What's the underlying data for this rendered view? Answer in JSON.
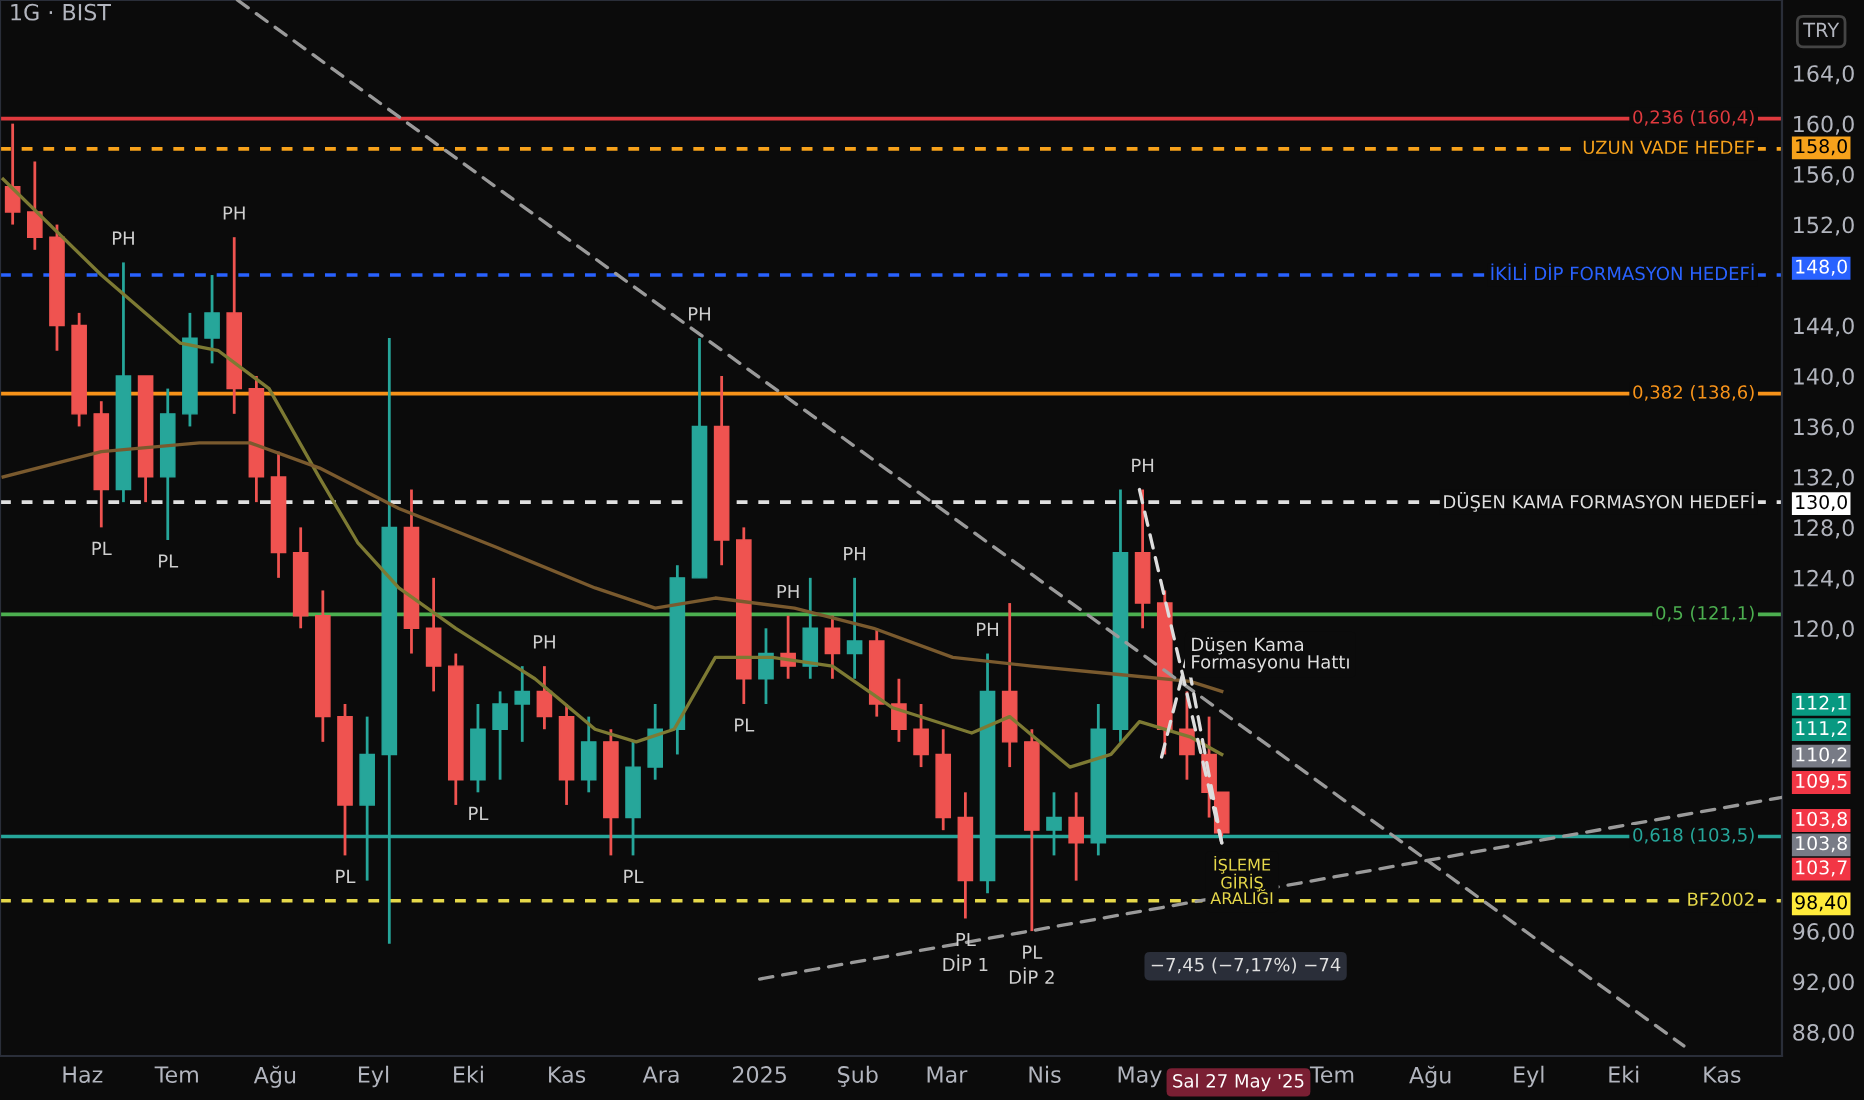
{
  "chart_data": {
    "type": "candlestick",
    "title": "1G · BIST",
    "x": [
      "2024-05-10",
      "2024-05-17",
      "2024-05-24",
      "2024-05-31",
      "2024-06-07",
      "2024-06-14",
      "2024-06-21",
      "2024-06-28",
      "2024-07-05",
      "2024-07-12",
      "2024-07-19",
      "2024-07-26",
      "2024-08-02",
      "2024-08-09",
      "2024-08-16",
      "2024-08-23",
      "2024-08-30",
      "2024-09-06",
      "2024-09-13",
      "2024-09-20",
      "2024-09-27",
      "2024-10-04",
      "2024-10-11",
      "2024-10-18",
      "2024-10-25",
      "2024-11-01",
      "2024-11-08",
      "2024-11-15",
      "2024-11-22",
      "2024-11-29",
      "2024-12-06",
      "2024-12-13",
      "2024-12-20",
      "2024-12-27",
      "2025-01-03",
      "2025-01-10",
      "2025-01-17",
      "2025-01-24",
      "2025-01-31",
      "2025-02-07",
      "2025-02-14",
      "2025-02-21",
      "2025-02-28",
      "2025-03-07",
      "2025-03-14",
      "2025-03-21",
      "2025-03-28",
      "2025-04-04",
      "2025-04-11",
      "2025-04-18",
      "2025-04-25",
      "2025-05-02",
      "2025-05-09",
      "2025-05-16",
      "2025-05-23",
      "2025-05-27"
    ],
    "ohlc": [
      [
        155,
        160,
        152,
        153
      ],
      [
        153,
        157,
        150,
        151
      ],
      [
        151,
        152,
        142,
        144
      ],
      [
        144,
        145,
        136,
        137
      ],
      [
        137,
        138,
        128,
        131
      ],
      [
        131,
        149,
        130,
        140
      ],
      [
        140,
        140,
        130,
        132
      ],
      [
        132,
        139,
        127,
        137
      ],
      [
        137,
        145,
        136,
        143
      ],
      [
        143,
        148,
        141,
        145
      ],
      [
        145,
        151,
        137,
        139
      ],
      [
        139,
        140,
        130,
        132
      ],
      [
        132,
        134,
        124,
        126
      ],
      [
        126,
        128,
        120,
        121
      ],
      [
        121,
        123,
        111,
        113
      ],
      [
        113,
        114,
        102,
        106
      ],
      [
        106,
        113,
        100,
        110
      ],
      [
        110,
        143,
        95,
        128
      ],
      [
        128,
        131,
        118,
        120
      ],
      [
        120,
        124,
        115,
        117
      ],
      [
        117,
        118,
        106,
        108
      ],
      [
        108,
        114,
        107,
        112
      ],
      [
        112,
        115,
        108,
        114
      ],
      [
        114,
        117,
        111,
        115
      ],
      [
        115,
        117,
        112,
        113
      ],
      [
        113,
        114,
        106,
        108
      ],
      [
        108,
        113,
        107,
        111
      ],
      [
        111,
        112,
        102,
        105
      ],
      [
        105,
        111,
        102,
        109
      ],
      [
        109,
        114,
        108,
        112
      ],
      [
        112,
        125,
        110,
        124
      ],
      [
        124,
        143,
        124,
        136
      ],
      [
        136,
        140,
        125,
        127
      ],
      [
        127,
        128,
        114,
        116
      ],
      [
        116,
        120,
        114,
        118
      ],
      [
        118,
        121,
        116,
        117
      ],
      [
        117,
        124,
        116,
        120
      ],
      [
        120,
        121,
        116,
        118
      ],
      [
        118,
        124,
        116,
        119
      ],
      [
        119,
        120,
        113,
        114
      ],
      [
        114,
        116,
        111,
        112
      ],
      [
        112,
        114,
        109,
        110
      ],
      [
        110,
        112,
        104,
        105
      ],
      [
        105,
        107,
        97,
        100
      ],
      [
        100,
        118,
        99,
        115
      ],
      [
        115,
        122,
        109,
        111
      ],
      [
        111,
        112,
        96,
        104
      ],
      [
        104,
        107,
        102,
        105
      ],
      [
        105,
        107,
        100,
        103
      ],
      [
        103,
        114,
        102,
        112
      ],
      [
        112,
        131,
        111,
        126
      ],
      [
        126,
        131,
        120,
        122
      ],
      [
        122,
        123,
        110,
        112
      ],
      [
        112,
        115,
        108,
        110
      ],
      [
        110,
        113,
        105,
        107
      ],
      [
        107,
        107,
        103.5,
        103.8
      ]
    ],
    "colors": [
      "#ef5350",
      "#ef5350",
      "#ef5350",
      "#ef5350",
      "#ef5350",
      "#26a69a",
      "#ef5350",
      "#26a69a",
      "#26a69a",
      "#26a69a",
      "#ef5350",
      "#ef5350",
      "#ef5350",
      "#ef5350",
      "#ef5350",
      "#ef5350",
      "#26a69a",
      "#26a69a",
      "#ef5350",
      "#ef5350",
      "#ef5350",
      "#26a69a",
      "#26a69a",
      "#26a69a",
      "#ef5350",
      "#ef5350",
      "#26a69a",
      "#ef5350",
      "#26a69a",
      "#26a69a",
      "#26a69a",
      "#26a69a",
      "#ef5350",
      "#ef5350",
      "#26a69a",
      "#ef5350",
      "#26a69a",
      "#ef5350",
      "#26a69a",
      "#ef5350",
      "#ef5350",
      "#ef5350",
      "#ef5350",
      "#ef5350",
      "#26a69a",
      "#ef5350",
      "#ef5350",
      "#26a69a",
      "#ef5350",
      "#26a69a",
      "#26a69a",
      "#ef5350",
      "#ef5350",
      "#ef5350",
      "#ef5350",
      "#ef5350"
    ],
    "series": [
      {
        "type": "line",
        "color": "#7d7a33",
        "x": [
          "2024-05-07",
          "2024-06-07",
          "2024-07-02",
          "2024-07-14",
          "2024-07-30",
          "2024-08-15",
          "2024-08-27",
          "2024-09-09",
          "2024-09-27",
          "2024-10-22",
          "2024-11-10",
          "2024-11-23",
          "2024-12-05",
          "2024-12-18",
          "2025-01-05",
          "2025-01-24",
          "2025-02-12",
          "2025-03-09",
          "2025-03-21",
          "2025-04-09",
          "2025-04-22",
          "2025-05-01",
          "2025-05-17",
          "2025-05-27"
        ],
        "values": [
          155.6,
          148,
          142.6,
          142,
          139,
          131.9,
          126.8,
          123.2,
          120,
          116,
          112,
          111,
          112,
          117.7,
          117.7,
          117,
          113.7,
          111.7,
          113,
          109,
          110,
          112.6,
          111.4,
          110
        ]
      },
      {
        "type": "line",
        "color": "#7a5a2e",
        "x": [
          "2024-05-07",
          "2024-06-07",
          "2024-07-08",
          "2024-07-24",
          "2024-08-15",
          "2024-09-09",
          "2024-10-10",
          "2024-11-10",
          "2024-11-29",
          "2024-12-18",
          "2025-01-12",
          "2025-02-06",
          "2025-03-03",
          "2025-03-28",
          "2025-04-22",
          "2025-05-17",
          "2025-05-27"
        ],
        "values": [
          132,
          134,
          134.7,
          134.7,
          132.7,
          129.5,
          126.4,
          123.2,
          121.6,
          122.4,
          121.6,
          120,
          117.7,
          117,
          116.4,
          115.8,
          115
        ]
      },
      {
        "type": "line",
        "color": "#9a9a9a",
        "line_style": "dashed",
        "x": [
          "2024-07-20",
          "2025-10-20"
        ],
        "values": [
          169.8,
          86.9
        ]
      },
      {
        "type": "line",
        "color": "#9a9a9a",
        "line_style": "dashed",
        "x": [
          "2025-01-01",
          "2025-11-20"
        ],
        "values": [
          92.2,
          106.6
        ]
      },
      {
        "type": "line",
        "color": "#dddddd",
        "line_style": "dashed",
        "x": [
          "2025-05-01",
          "2025-05-27"
        ],
        "values": [
          131,
          103
        ]
      },
      {
        "type": "line",
        "color": "#dddddd",
        "line_style": "dashed",
        "x": [
          "2025-05-08",
          "2025-05-16",
          "2025-05-27"
        ],
        "values": [
          109.8,
          117.7,
          103
        ]
      }
    ],
    "ref_lines": [
      {
        "axis": "y",
        "value": 160.4,
        "label": "0,236 (160,4)",
        "color": "#e03a3e",
        "line_style": "solid"
      },
      {
        "axis": "y",
        "value": 158.0,
        "label": "UZUN VADE HEDEF",
        "color": "#f7a21b",
        "line_style": "dashed"
      },
      {
        "axis": "y",
        "value": 148.0,
        "label": "İKİLİ DİP FORMASYON HEDEFİ",
        "color": "#2962ff",
        "line_style": "dashed"
      },
      {
        "axis": "y",
        "value": 138.6,
        "label": "0,382 (138,6)",
        "color": "#f7931a",
        "line_style": "solid"
      },
      {
        "axis": "y",
        "value": 130.0,
        "label": "DÜŞEN KAMA FORMASYON HEDEFİ",
        "color": "#e0e0e0",
        "line_style": "dashed"
      },
      {
        "axis": "y",
        "value": 121.1,
        "label": "0,5 (121,1)",
        "color": "#4caf50",
        "line_style": "solid"
      },
      {
        "axis": "y",
        "value": 103.5,
        "label": "0,618 (103,5)",
        "color": "#26a69a",
        "line_style": "solid"
      },
      {
        "axis": "y",
        "value": 98.4,
        "label": "BF2002",
        "color": "#e6d84a",
        "line_style": "dashed"
      }
    ],
    "annotations": [
      "TRY",
      "158,0",
      "148,0",
      "130,0",
      "112,1",
      "111,2",
      "110,2",
      "109,5",
      "103,8",
      "103,8",
      "103,7",
      "98,40",
      "Düşen Kama\nFormasyonu Hattı",
      "İŞLEME\nGİRİŞ\nARALIĞI",
      "−7,45 (−7,17%) −74",
      "Sal 27 May '25",
      {
        "text": "PH",
        "x": "2024-06-14",
        "y": 149
      },
      {
        "text": "PH",
        "x": "2024-07-19",
        "y": 151
      },
      {
        "text": "PH",
        "x": "2024-10-25",
        "y": 117
      },
      {
        "text": "PH",
        "x": "2024-12-13",
        "y": 143
      },
      {
        "text": "PH",
        "x": "2025-01-10",
        "y": 121
      },
      {
        "text": "PH",
        "x": "2025-01-31",
        "y": 124
      },
      {
        "text": "PH",
        "x": "2025-03-14",
        "y": 118
      },
      {
        "text": "PH",
        "x": "2025-05-02",
        "y": 131
      },
      {
        "text": "PL",
        "x": "2024-06-07",
        "y": 128
      },
      {
        "text": "PL",
        "x": "2024-06-28",
        "y": 127
      },
      {
        "text": "PL",
        "x": "2024-08-23",
        "y": 102
      },
      {
        "text": "PL",
        "x": "2024-10-04",
        "y": 107
      },
      {
        "text": "PL",
        "x": "2024-11-22",
        "y": 102
      },
      {
        "text": "PL",
        "x": "2024-12-27",
        "y": 114
      },
      {
        "text": "PL",
        "x": "2025-03-07",
        "y": 97
      },
      {
        "text": "PL",
        "x": "2025-03-28",
        "y": 96
      },
      {
        "text": "DİP 1",
        "x": "2025-03-07",
        "y": 97
      },
      {
        "text": "DİP 2",
        "x": "2025-03-28",
        "y": 96
      }
    ],
    "xlim": [
      "2024-05-06",
      "2025-11-20"
    ],
    "xticks": [
      {
        "value": "2024-06-01",
        "label": "Haz"
      },
      {
        "value": "2024-07-01",
        "label": "Tem"
      },
      {
        "value": "2024-08-01",
        "label": "Ağu"
      },
      {
        "value": "2024-09-01",
        "label": "Eyl"
      },
      {
        "value": "2024-10-01",
        "label": "Eki"
      },
      {
        "value": "2024-11-01",
        "label": "Kas"
      },
      {
        "value": "2024-12-01",
        "label": "Ara"
      },
      {
        "value": "2025-01-01",
        "label": "2025"
      },
      {
        "value": "2025-02-01",
        "label": "Şub"
      },
      {
        "value": "2025-03-01",
        "label": "Mar"
      },
      {
        "value": "2025-04-01",
        "label": "Nis"
      },
      {
        "value": "2025-05-01",
        "label": "May"
      },
      {
        "value": "2025-07-01",
        "label": "Tem"
      },
      {
        "value": "2025-08-01",
        "label": "Ağu"
      },
      {
        "value": "2025-09-01",
        "label": "Eyl"
      },
      {
        "value": "2025-10-01",
        "label": "Eki"
      },
      {
        "value": "2025-11-01",
        "label": "Kas"
      }
    ],
    "ylim": [
      86.1,
      169.8
    ],
    "yticks": [
      {
        "value": 88,
        "label": "88,00"
      },
      {
        "value": 92,
        "label": "92,00"
      },
      {
        "value": 96,
        "label": "96,00"
      },
      {
        "value": 120,
        "label": "120,0"
      },
      {
        "value": 124,
        "label": "124,0"
      },
      {
        "value": 128,
        "label": "128,0"
      },
      {
        "value": 132,
        "label": "132,0"
      },
      {
        "value": 136,
        "label": "136,0"
      },
      {
        "value": 140,
        "label": "140,0"
      },
      {
        "value": 144,
        "label": "144,0"
      },
      {
        "value": 152,
        "label": "152,0"
      },
      {
        "value": 156,
        "label": "156,0"
      },
      {
        "value": 160,
        "label": "160,0"
      },
      {
        "value": 164,
        "label": "164,0"
      }
    ],
    "grid": false
  }
}
